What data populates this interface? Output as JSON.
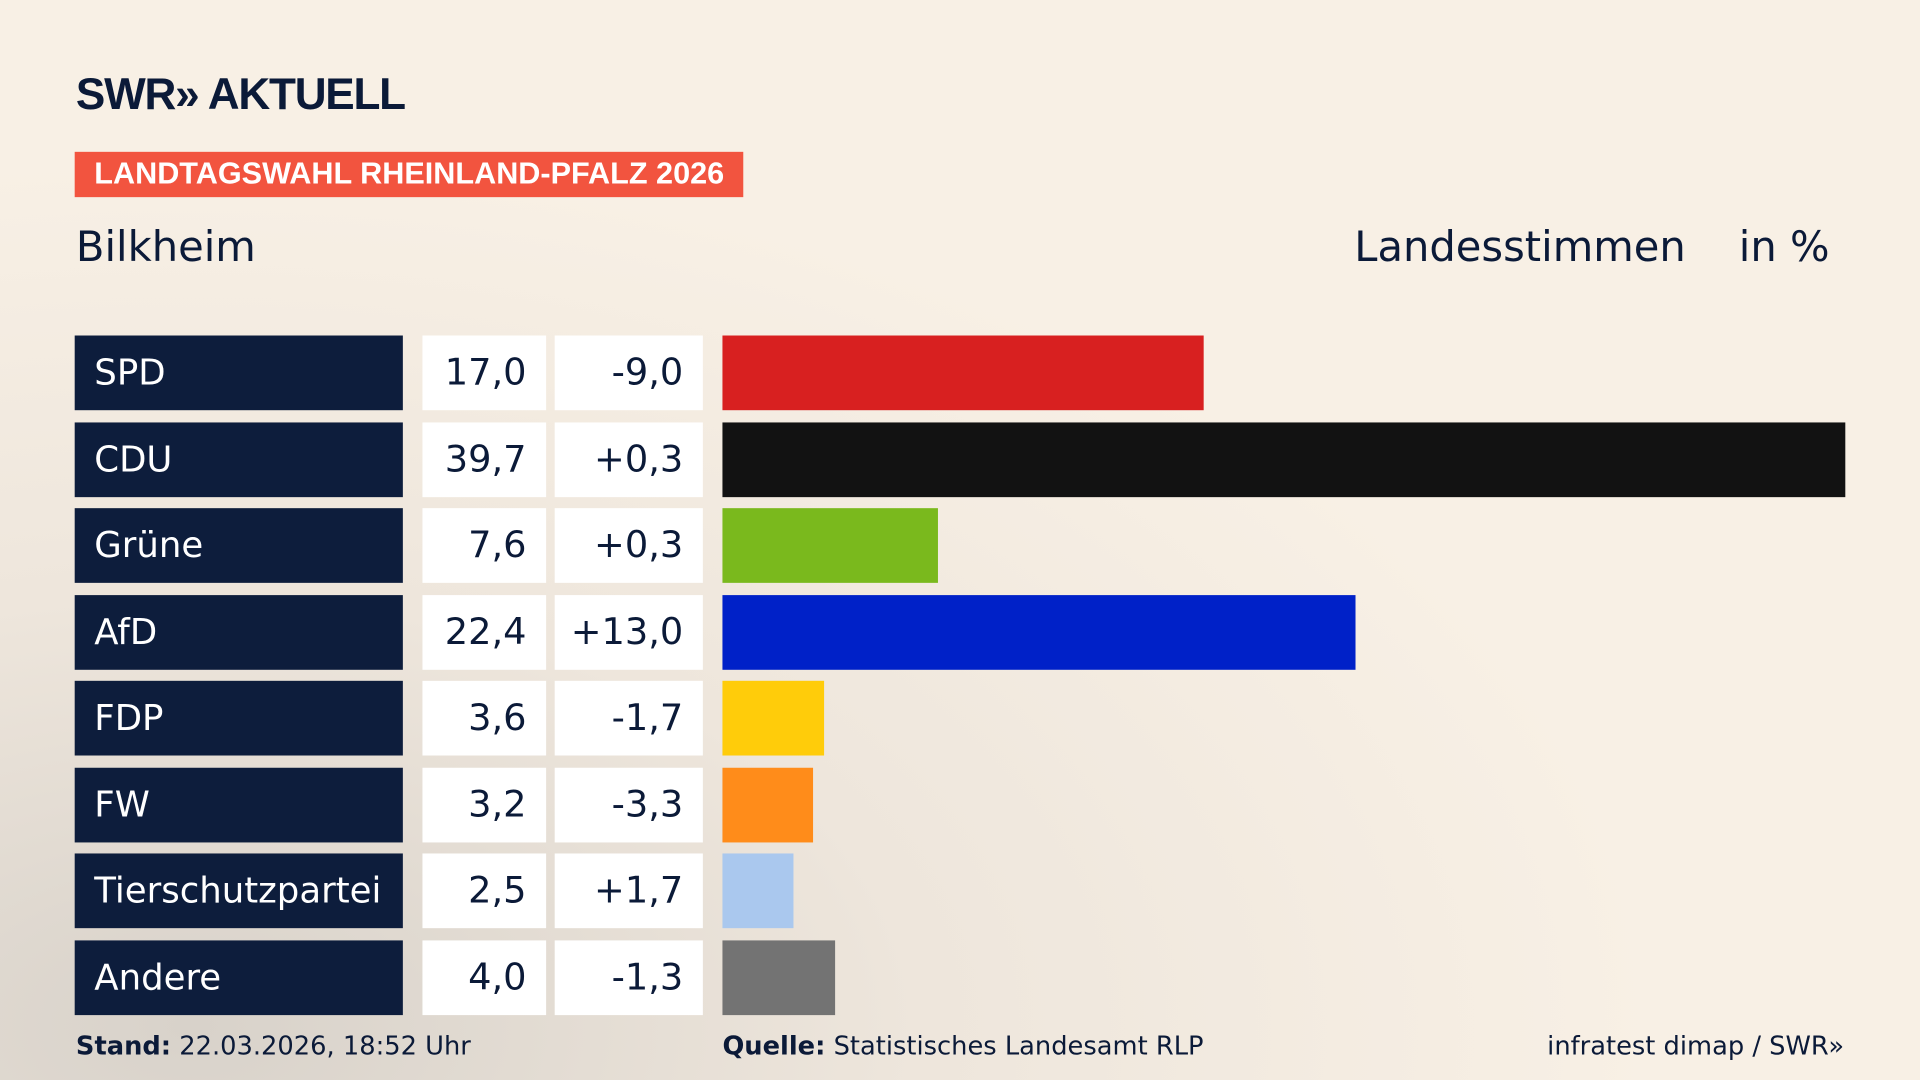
{
  "logo": "SWR» AKTUELL",
  "banner": "LANDTAGSWAHL RHEINLAND-PFALZ 2026",
  "region": "Bilkheim",
  "header_vote": "Landesstimmen",
  "header_unit": "in %",
  "chart_data": {
    "type": "bar",
    "categories": [
      "SPD",
      "CDU",
      "Grüne",
      "AfD",
      "FDP",
      "FW",
      "Tierschutzpartei",
      "Andere"
    ],
    "values": [
      17.0,
      39.7,
      7.6,
      22.4,
      3.6,
      3.2,
      2.5,
      4.0
    ],
    "value_labels": [
      "17,0",
      "39,7",
      "7,6",
      "22,4",
      "3,6",
      "3,2",
      "2,5",
      "4,0"
    ],
    "diff_labels": [
      "-9,0",
      "+0,3",
      "+0,3",
      "+13,0",
      "-1,7",
      "-3,3",
      "+1,7",
      "-1,3"
    ],
    "colors": [
      "#d82020",
      "#121212",
      "#7ab91d",
      "#0021c8",
      "#ffcc0a",
      "#ff8c1a",
      "#aac8ee",
      "#737373"
    ],
    "xlim": [
      0,
      39.7
    ],
    "orientation": "horizontal"
  },
  "footer": {
    "stand_label": "Stand:",
    "stand_value": "22.03.2026, 18:52 Uhr",
    "source_label": "Quelle:",
    "source_value": "Statistisches Landesamt RLP",
    "credit": "infratest dimap / SWR»"
  }
}
